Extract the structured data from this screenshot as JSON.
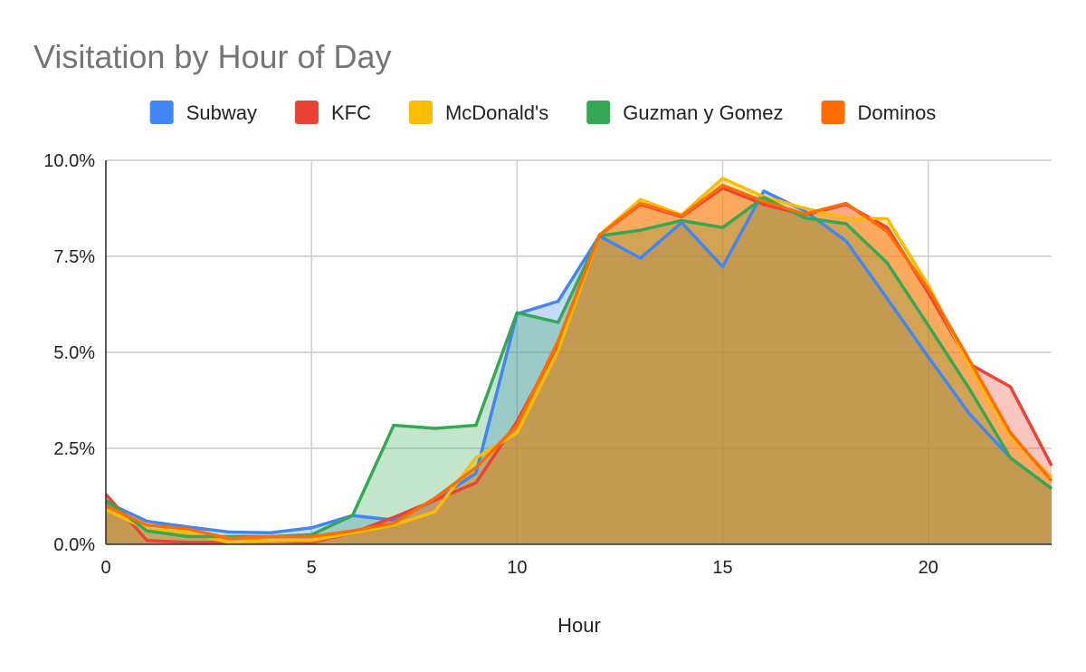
{
  "chart_data": {
    "type": "area",
    "title": "Visitation by Hour of Day",
    "xlabel": "Hour",
    "ylabel": "",
    "xlim": [
      0,
      23
    ],
    "ylim": [
      0,
      0.1
    ],
    "x_ticks": [
      0,
      5,
      10,
      15,
      20
    ],
    "x_tick_labels": [
      "0",
      "5",
      "10",
      "15",
      "20"
    ],
    "y_ticks": [
      0,
      0.025,
      0.05,
      0.075,
      0.1
    ],
    "y_tick_labels": [
      "0.0%",
      "2.5%",
      "5.0%",
      "7.5%",
      "10.0%"
    ],
    "grid": true,
    "legend_position": "top",
    "x": [
      0,
      1,
      2,
      3,
      4,
      5,
      6,
      7,
      8,
      9,
      10,
      11,
      12,
      13,
      14,
      15,
      16,
      17,
      18,
      19,
      20,
      21,
      22,
      23
    ],
    "series": [
      {
        "name": "Subway",
        "color": "#4285F4",
        "values": [
          0.011,
          0.006,
          0.0045,
          0.0032,
          0.003,
          0.0043,
          0.0075,
          0.0063,
          0.0115,
          0.0185,
          0.06,
          0.0633,
          0.0803,
          0.0745,
          0.0838,
          0.0723,
          0.092,
          0.0868,
          0.079,
          0.064,
          0.0488,
          0.034,
          0.0225,
          0.0145
        ]
      },
      {
        "name": "KFC",
        "color": "#EA4335",
        "values": [
          0.013,
          0.001,
          0.0005,
          0.0005,
          0.001,
          0.0005,
          0.003,
          0.007,
          0.0115,
          0.016,
          0.032,
          0.052,
          0.0805,
          0.0885,
          0.0853,
          0.0928,
          0.0885,
          0.0858,
          0.0885,
          0.0825,
          0.0655,
          0.047,
          0.041,
          0.0205
        ]
      },
      {
        "name": "McDonald's",
        "color": "#FBBC04",
        "values": [
          0.009,
          0.004,
          0.003,
          0.0005,
          0.001,
          0.001,
          0.003,
          0.005,
          0.0085,
          0.0225,
          0.029,
          0.0505,
          0.0805,
          0.0898,
          0.0858,
          0.0953,
          0.0905,
          0.0875,
          0.085,
          0.0848,
          0.0675,
          0.0465,
          0.028,
          0.0175
        ]
      },
      {
        "name": "Guzman y Gomez",
        "color": "#34A853",
        "values": [
          0.0115,
          0.0035,
          0.002,
          0.002,
          0.002,
          0.0025,
          0.0075,
          0.031,
          0.0302,
          0.031,
          0.0603,
          0.0578,
          0.0803,
          0.0818,
          0.0843,
          0.0825,
          0.0903,
          0.085,
          0.0835,
          0.0733,
          0.057,
          0.0405,
          0.0225,
          0.0145
        ]
      },
      {
        "name": "Dominos",
        "color": "#FF6D01",
        "values": [
          0.01,
          0.005,
          0.004,
          0.0015,
          0.002,
          0.002,
          0.0035,
          0.0055,
          0.012,
          0.02,
          0.031,
          0.053,
          0.0805,
          0.0888,
          0.0855,
          0.0935,
          0.0893,
          0.086,
          0.0888,
          0.0815,
          0.0665,
          0.048,
          0.029,
          0.0165
        ]
      }
    ]
  }
}
